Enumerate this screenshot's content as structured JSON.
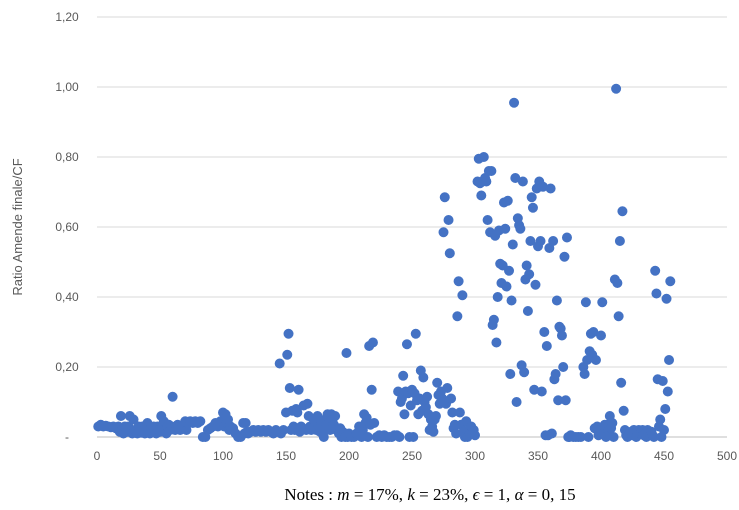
{
  "chart_data": {
    "type": "scatter",
    "ylabel": "Ratio Amende finale/CF",
    "xlabel": "",
    "xlim": [
      0,
      500
    ],
    "ylim": [
      0,
      1.2
    ],
    "x_tick_labels": [
      "0",
      "50",
      "100",
      "150",
      "200",
      "250",
      "300",
      "350",
      "400",
      "450",
      "500"
    ],
    "y_tick_labels": [
      "-",
      "0,20",
      "0,40",
      "0,60",
      "0,80",
      "1,00",
      "1,20"
    ],
    "grid": "horizontal",
    "marker_color": "#4472c4",
    "note": "Notes : m = 17%, k = 23%, ϵ = 1, α = 0, 15",
    "note_parts": {
      "prefix": "Notes : ",
      "m_sym": "m",
      "m_val": " = 17%, ",
      "k_sym": "k",
      "k_val": " = 23%, ",
      "e_sym": "ϵ",
      "e_val": " = 1, ",
      "a_sym": "α",
      "a_val": " = 0, 15"
    },
    "points": [
      [
        1,
        0.03
      ],
      [
        3,
        0.035
      ],
      [
        5,
        0.03
      ],
      [
        7,
        0.032
      ],
      [
        9,
        0.03
      ],
      [
        11,
        0.028
      ],
      [
        13,
        0.03
      ],
      [
        15,
        0.025
      ],
      [
        17,
        0.03
      ],
      [
        18,
        0.015
      ],
      [
        19,
        0.06
      ],
      [
        20,
        0.02
      ],
      [
        21,
        0.01
      ],
      [
        22,
        0.03
      ],
      [
        23,
        0.025
      ],
      [
        24,
        0.015
      ],
      [
        25,
        0.03
      ],
      [
        26,
        0.06
      ],
      [
        27,
        0.02
      ],
      [
        28,
        0.01
      ],
      [
        29,
        0.05
      ],
      [
        30,
        0.02
      ],
      [
        31,
        0.015
      ],
      [
        32,
        0.01
      ],
      [
        33,
        0.03
      ],
      [
        34,
        0.02
      ],
      [
        35,
        0.012
      ],
      [
        36,
        0.03
      ],
      [
        37,
        0.02
      ],
      [
        38,
        0.01
      ],
      [
        39,
        0.03
      ],
      [
        40,
        0.04
      ],
      [
        41,
        0.02
      ],
      [
        42,
        0.01
      ],
      [
        43,
        0.025
      ],
      [
        44,
        0.015
      ],
      [
        45,
        0.03
      ],
      [
        46,
        0.02
      ],
      [
        47,
        0.01
      ],
      [
        48,
        0.03
      ],
      [
        49,
        0.02
      ],
      [
        50,
        0.015
      ],
      [
        51,
        0.06
      ],
      [
        52,
        0.03
      ],
      [
        53,
        0.045
      ],
      [
        54,
        0.02
      ],
      [
        55,
        0.01
      ],
      [
        56,
        0.03
      ],
      [
        57,
        0.035
      ],
      [
        58,
        0.02
      ],
      [
        59,
        0.03
      ],
      [
        60,
        0.115
      ],
      [
        61,
        0.025
      ],
      [
        62,
        0.02
      ],
      [
        63,
        0.03
      ],
      [
        64,
        0.035
      ],
      [
        65,
        0.025
      ],
      [
        66,
        0.02
      ],
      [
        68,
        0.03
      ],
      [
        70,
        0.045
      ],
      [
        71,
        0.02
      ],
      [
        72,
        0.04
      ],
      [
        74,
        0.045
      ],
      [
        76,
        0.04
      ],
      [
        78,
        0.045
      ],
      [
        80,
        0.04
      ],
      [
        82,
        0.045
      ],
      [
        84,
        0.0
      ],
      [
        86,
        0.0
      ],
      [
        88,
        0.02
      ],
      [
        90,
        0.025
      ],
      [
        92,
        0.03
      ],
      [
        94,
        0.04
      ],
      [
        96,
        0.03
      ],
      [
        98,
        0.045
      ],
      [
        100,
        0.07
      ],
      [
        101,
        0.03
      ],
      [
        102,
        0.065
      ],
      [
        103,
        0.04
      ],
      [
        104,
        0.05
      ],
      [
        105,
        0.02
      ],
      [
        106,
        0.03
      ],
      [
        108,
        0.025
      ],
      [
        110,
        0.01
      ],
      [
        112,
        0.0
      ],
      [
        114,
        0.0
      ],
      [
        116,
        0.04
      ],
      [
        117,
        0.01
      ],
      [
        118,
        0.04
      ],
      [
        119,
        0.015
      ],
      [
        120,
        0.01
      ],
      [
        122,
        0.015
      ],
      [
        124,
        0.02
      ],
      [
        126,
        0.015
      ],
      [
        128,
        0.02
      ],
      [
        130,
        0.015
      ],
      [
        132,
        0.02
      ],
      [
        134,
        0.015
      ],
      [
        136,
        0.02
      ],
      [
        138,
        0.015
      ],
      [
        140,
        0.01
      ],
      [
        142,
        0.02
      ],
      [
        144,
        0.015
      ],
      [
        145,
        0.21
      ],
      [
        146,
        0.01
      ],
      [
        148,
        0.02
      ],
      [
        150,
        0.07
      ],
      [
        151,
        0.235
      ],
      [
        152,
        0.295
      ],
      [
        153,
        0.14
      ],
      [
        154,
        0.02
      ],
      [
        155,
        0.075
      ],
      [
        156,
        0.03
      ],
      [
        157,
        0.02
      ],
      [
        158,
        0.08
      ],
      [
        159,
        0.07
      ],
      [
        160,
        0.135
      ],
      [
        161,
        0.015
      ],
      [
        162,
        0.03
      ],
      [
        164,
        0.09
      ],
      [
        166,
        0.02
      ],
      [
        167,
        0.095
      ],
      [
        168,
        0.06
      ],
      [
        169,
        0.03
      ],
      [
        170,
        0.02
      ],
      [
        172,
        0.05
      ],
      [
        173,
        0.03
      ],
      [
        174,
        0.02
      ],
      [
        175,
        0.06
      ],
      [
        176,
        0.03
      ],
      [
        177,
        0.015
      ],
      [
        178,
        0.04
      ],
      [
        179,
        0.02
      ],
      [
        180,
        0.0
      ],
      [
        181,
        0.05
      ],
      [
        182,
        0.035
      ],
      [
        183,
        0.065
      ],
      [
        184,
        0.055
      ],
      [
        185,
        0.02
      ],
      [
        186,
        0.065
      ],
      [
        187,
        0.05
      ],
      [
        188,
        0.035
      ],
      [
        189,
        0.06
      ],
      [
        190,
        0.02
      ],
      [
        192,
        0.01
      ],
      [
        193,
        0.025
      ],
      [
        194,
        0.0
      ],
      [
        195,
        0.015
      ],
      [
        196,
        0.01
      ],
      [
        197,
        0.0
      ],
      [
        198,
        0.24
      ],
      [
        199,
        0.0
      ],
      [
        200,
        0.01
      ],
      [
        202,
        0.0
      ],
      [
        204,
        0.0
      ],
      [
        206,
        0.01
      ],
      [
        208,
        0.03
      ],
      [
        210,
        0.0
      ],
      [
        211,
        0.02
      ],
      [
        212,
        0.065
      ],
      [
        213,
        0.04
      ],
      [
        214,
        0.055
      ],
      [
        215,
        0.0
      ],
      [
        216,
        0.26
      ],
      [
        217,
        0.035
      ],
      [
        218,
        0.135
      ],
      [
        219,
        0.27
      ],
      [
        220,
        0.04
      ],
      [
        222,
        0.0
      ],
      [
        224,
        0.005
      ],
      [
        226,
        0.0
      ],
      [
        228,
        0.005
      ],
      [
        230,
        0.0
      ],
      [
        232,
        0.0
      ],
      [
        234,
        0.0
      ],
      [
        236,
        0.005
      ],
      [
        238,
        0.005
      ],
      [
        239,
        0.13
      ],
      [
        240,
        0.0
      ],
      [
        241,
        0.1
      ],
      [
        242,
        0.11
      ],
      [
        243,
        0.175
      ],
      [
        244,
        0.065
      ],
      [
        245,
        0.13
      ],
      [
        246,
        0.265
      ],
      [
        247,
        0.125
      ],
      [
        248,
        0.0
      ],
      [
        249,
        0.09
      ],
      [
        250,
        0.135
      ],
      [
        251,
        0.0
      ],
      [
        252,
        0.125
      ],
      [
        253,
        0.295
      ],
      [
        254,
        0.105
      ],
      [
        255,
        0.065
      ],
      [
        256,
        0.11
      ],
      [
        257,
        0.19
      ],
      [
        258,
        0.075
      ],
      [
        259,
        0.17
      ],
      [
        260,
        0.1
      ],
      [
        261,
        0.085
      ],
      [
        262,
        0.115
      ],
      [
        263,
        0.065
      ],
      [
        264,
        0.02
      ],
      [
        265,
        0.05
      ],
      [
        266,
        0.03
      ],
      [
        267,
        0.015
      ],
      [
        268,
        0.05
      ],
      [
        269,
        0.06
      ],
      [
        270,
        0.155
      ],
      [
        271,
        0.12
      ],
      [
        272,
        0.095
      ],
      [
        273,
        0.13
      ],
      [
        274,
        0.11
      ],
      [
        275,
        0.585
      ],
      [
        276,
        0.685
      ],
      [
        277,
        0.095
      ],
      [
        278,
        0.14
      ],
      [
        279,
        0.62
      ],
      [
        280,
        0.525
      ],
      [
        281,
        0.11
      ],
      [
        282,
        0.07
      ],
      [
        283,
        0.025
      ],
      [
        284,
        0.035
      ],
      [
        285,
        0.01
      ],
      [
        286,
        0.345
      ],
      [
        287,
        0.445
      ],
      [
        288,
        0.07
      ],
      [
        289,
        0.035
      ],
      [
        290,
        0.405
      ],
      [
        291,
        0.015
      ],
      [
        292,
        0.0
      ],
      [
        293,
        0.045
      ],
      [
        294,
        0.0
      ],
      [
        295,
        0.02
      ],
      [
        296,
        0.01
      ],
      [
        297,
        0.03
      ],
      [
        298,
        0.01
      ],
      [
        299,
        0.02
      ],
      [
        300,
        0.005
      ],
      [
        302,
        0.73
      ],
      [
        303,
        0.795
      ],
      [
        304,
        0.725
      ],
      [
        305,
        0.69
      ],
      [
        306,
        0.73
      ],
      [
        307,
        0.8
      ],
      [
        308,
        0.74
      ],
      [
        309,
        0.73
      ],
      [
        310,
        0.62
      ],
      [
        311,
        0.76
      ],
      [
        312,
        0.585
      ],
      [
        313,
        0.76
      ],
      [
        314,
        0.32
      ],
      [
        315,
        0.335
      ],
      [
        316,
        0.575
      ],
      [
        317,
        0.27
      ],
      [
        318,
        0.4
      ],
      [
        319,
        0.59
      ],
      [
        320,
        0.495
      ],
      [
        321,
        0.44
      ],
      [
        322,
        0.49
      ],
      [
        323,
        0.67
      ],
      [
        324,
        0.595
      ],
      [
        325,
        0.43
      ],
      [
        326,
        0.675
      ],
      [
        327,
        0.475
      ],
      [
        328,
        0.18
      ],
      [
        329,
        0.39
      ],
      [
        330,
        0.55
      ],
      [
        331,
        0.955
      ],
      [
        332,
        0.74
      ],
      [
        333,
        0.1
      ],
      [
        334,
        0.625
      ],
      [
        335,
        0.605
      ],
      [
        336,
        0.595
      ],
      [
        337,
        0.205
      ],
      [
        338,
        0.73
      ],
      [
        339,
        0.185
      ],
      [
        340,
        0.45
      ],
      [
        341,
        0.49
      ],
      [
        342,
        0.36
      ],
      [
        343,
        0.465
      ],
      [
        344,
        0.56
      ],
      [
        345,
        0.685
      ],
      [
        346,
        0.655
      ],
      [
        347,
        0.135
      ],
      [
        348,
        0.435
      ],
      [
        349,
        0.71
      ],
      [
        350,
        0.545
      ],
      [
        351,
        0.73
      ],
      [
        352,
        0.56
      ],
      [
        353,
        0.13
      ],
      [
        354,
        0.715
      ],
      [
        355,
        0.3
      ],
      [
        356,
        0.005
      ],
      [
        357,
        0.26
      ],
      [
        358,
        0.005
      ],
      [
        359,
        0.54
      ],
      [
        360,
        0.71
      ],
      [
        361,
        0.01
      ],
      [
        362,
        0.56
      ],
      [
        363,
        0.165
      ],
      [
        364,
        0.18
      ],
      [
        365,
        0.39
      ],
      [
        366,
        0.105
      ],
      [
        367,
        0.315
      ],
      [
        368,
        0.31
      ],
      [
        369,
        0.29
      ],
      [
        370,
        0.2
      ],
      [
        371,
        0.515
      ],
      [
        372,
        0.105
      ],
      [
        373,
        0.57
      ],
      [
        374,
        0.0
      ],
      [
        375,
        0.0
      ],
      [
        376,
        0.005
      ],
      [
        378,
        0.0
      ],
      [
        380,
        0.0
      ],
      [
        382,
        0.0
      ],
      [
        384,
        0.0
      ],
      [
        386,
        0.2
      ],
      [
        387,
        0.18
      ],
      [
        388,
        0.385
      ],
      [
        389,
        0.22
      ],
      [
        390,
        0.0
      ],
      [
        391,
        0.245
      ],
      [
        392,
        0.295
      ],
      [
        393,
        0.235
      ],
      [
        394,
        0.3
      ],
      [
        395,
        0.025
      ],
      [
        396,
        0.22
      ],
      [
        397,
        0.03
      ],
      [
        398,
        0.005
      ],
      [
        399,
        0.02
      ],
      [
        400,
        0.29
      ],
      [
        401,
        0.385
      ],
      [
        402,
        0.01
      ],
      [
        403,
        0.035
      ],
      [
        404,
        0.0
      ],
      [
        405,
        0.035
      ],
      [
        406,
        0.02
      ],
      [
        407,
        0.06
      ],
      [
        408,
        0.025
      ],
      [
        409,
        0.04
      ],
      [
        410,
        0.0
      ],
      [
        411,
        0.45
      ],
      [
        412,
        0.995
      ],
      [
        413,
        0.44
      ],
      [
        414,
        0.345
      ],
      [
        415,
        0.56
      ],
      [
        416,
        0.155
      ],
      [
        417,
        0.645
      ],
      [
        418,
        0.075
      ],
      [
        419,
        0.02
      ],
      [
        420,
        0.005
      ],
      [
        421,
        0.0
      ],
      [
        422,
        0.005
      ],
      [
        423,
        0.01
      ],
      [
        424,
        0.015
      ],
      [
        425,
        0.005
      ],
      [
        426,
        0.02
      ],
      [
        427,
        0.01
      ],
      [
        428,
        0.0
      ],
      [
        429,
        0.005
      ],
      [
        430,
        0.02
      ],
      [
        431,
        0.01
      ],
      [
        432,
        0.015
      ],
      [
        433,
        0.02
      ],
      [
        434,
        0.005
      ],
      [
        435,
        0.01
      ],
      [
        436,
        0.0
      ],
      [
        437,
        0.02
      ],
      [
        438,
        0.01
      ],
      [
        439,
        0.005
      ],
      [
        440,
        0.015
      ],
      [
        441,
        0.005
      ],
      [
        442,
        0.0
      ],
      [
        443,
        0.475
      ],
      [
        444,
        0.41
      ],
      [
        445,
        0.165
      ],
      [
        446,
        0.03
      ],
      [
        447,
        0.05
      ],
      [
        448,
        0.0
      ],
      [
        449,
        0.16
      ],
      [
        450,
        0.02
      ],
      [
        451,
        0.08
      ],
      [
        452,
        0.395
      ],
      [
        453,
        0.13
      ],
      [
        454,
        0.22
      ],
      [
        455,
        0.445
      ]
    ]
  }
}
